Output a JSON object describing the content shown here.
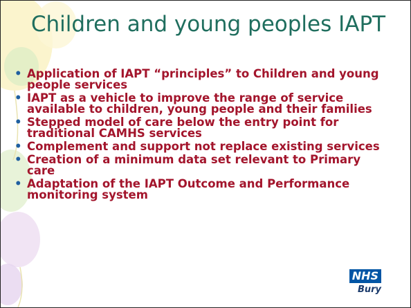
{
  "header": {
    "title": "Children and young peoples IAPT"
  },
  "bullets": [
    "Application of IAPT “principles” to Children and young people services",
    "IAPT as a vehicle to improve the range of service available to children, young people and their families",
    "Stepped model of care below the entry point for traditional CAMHS services",
    "Complement and support not replace existing services",
    "Creation of a minimum data set relevant to Primary care",
    "Adaptation of the IAPT Outcome and Performance monitoring system"
  ],
  "logo": {
    "mark": "NHS",
    "org": "Bury"
  }
}
